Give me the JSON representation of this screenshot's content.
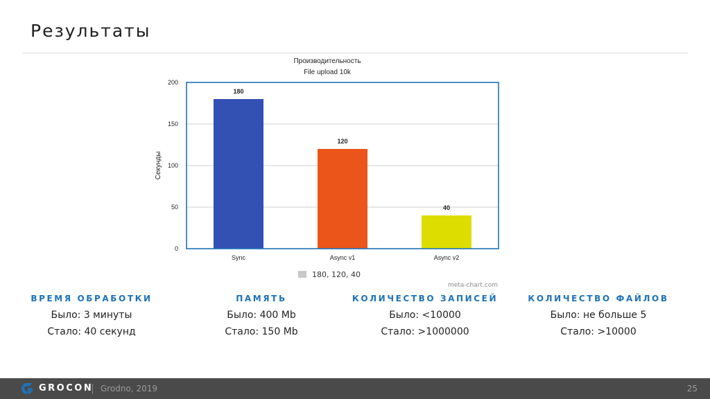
{
  "slide": {
    "title": "Результаты"
  },
  "chart_data": {
    "type": "bar",
    "title": "Производительность",
    "subtitle": "File upload 10k",
    "xlabel": "",
    "ylabel": "Секунды",
    "categories": [
      "Sync",
      "Async v1",
      "Async v2"
    ],
    "values": [
      180,
      120,
      40
    ],
    "data_labels": [
      "180",
      "120",
      "40"
    ],
    "colors": [
      "#3350b3",
      "#ec5519",
      "#dddd00"
    ],
    "ylim": [
      0,
      200
    ],
    "yticks": [
      0,
      50,
      100,
      150,
      200
    ],
    "grid": true,
    "legend": {
      "position": "bottom",
      "entries": [
        {
          "name": "180, 120, 40",
          "color": "#c8c8c8"
        }
      ]
    },
    "watermark": "meta-chart.com"
  },
  "stats": [
    {
      "heading": "ВРЕМЯ ОБРАБОТКИ",
      "before": "Было: 3 минуты",
      "after": "Стало: 40 секунд"
    },
    {
      "heading": "ПАМЯТЬ",
      "before": "Было: 400 Mb",
      "after": "Стало: 150 Mb"
    },
    {
      "heading": "КОЛИЧЕСТВО ЗАПИСЕЙ",
      "before": "Было: <10000",
      "after": "Стало: >1000000"
    },
    {
      "heading": "КОЛИЧЕСТВО ФАЙЛОВ",
      "before": "Было: не больше 5",
      "after": "Стало: >10000"
    }
  ],
  "footer": {
    "brand": "GROCON",
    "place": "Grodno, 2019",
    "page": "25",
    "brand_color": "#1d72b8"
  }
}
